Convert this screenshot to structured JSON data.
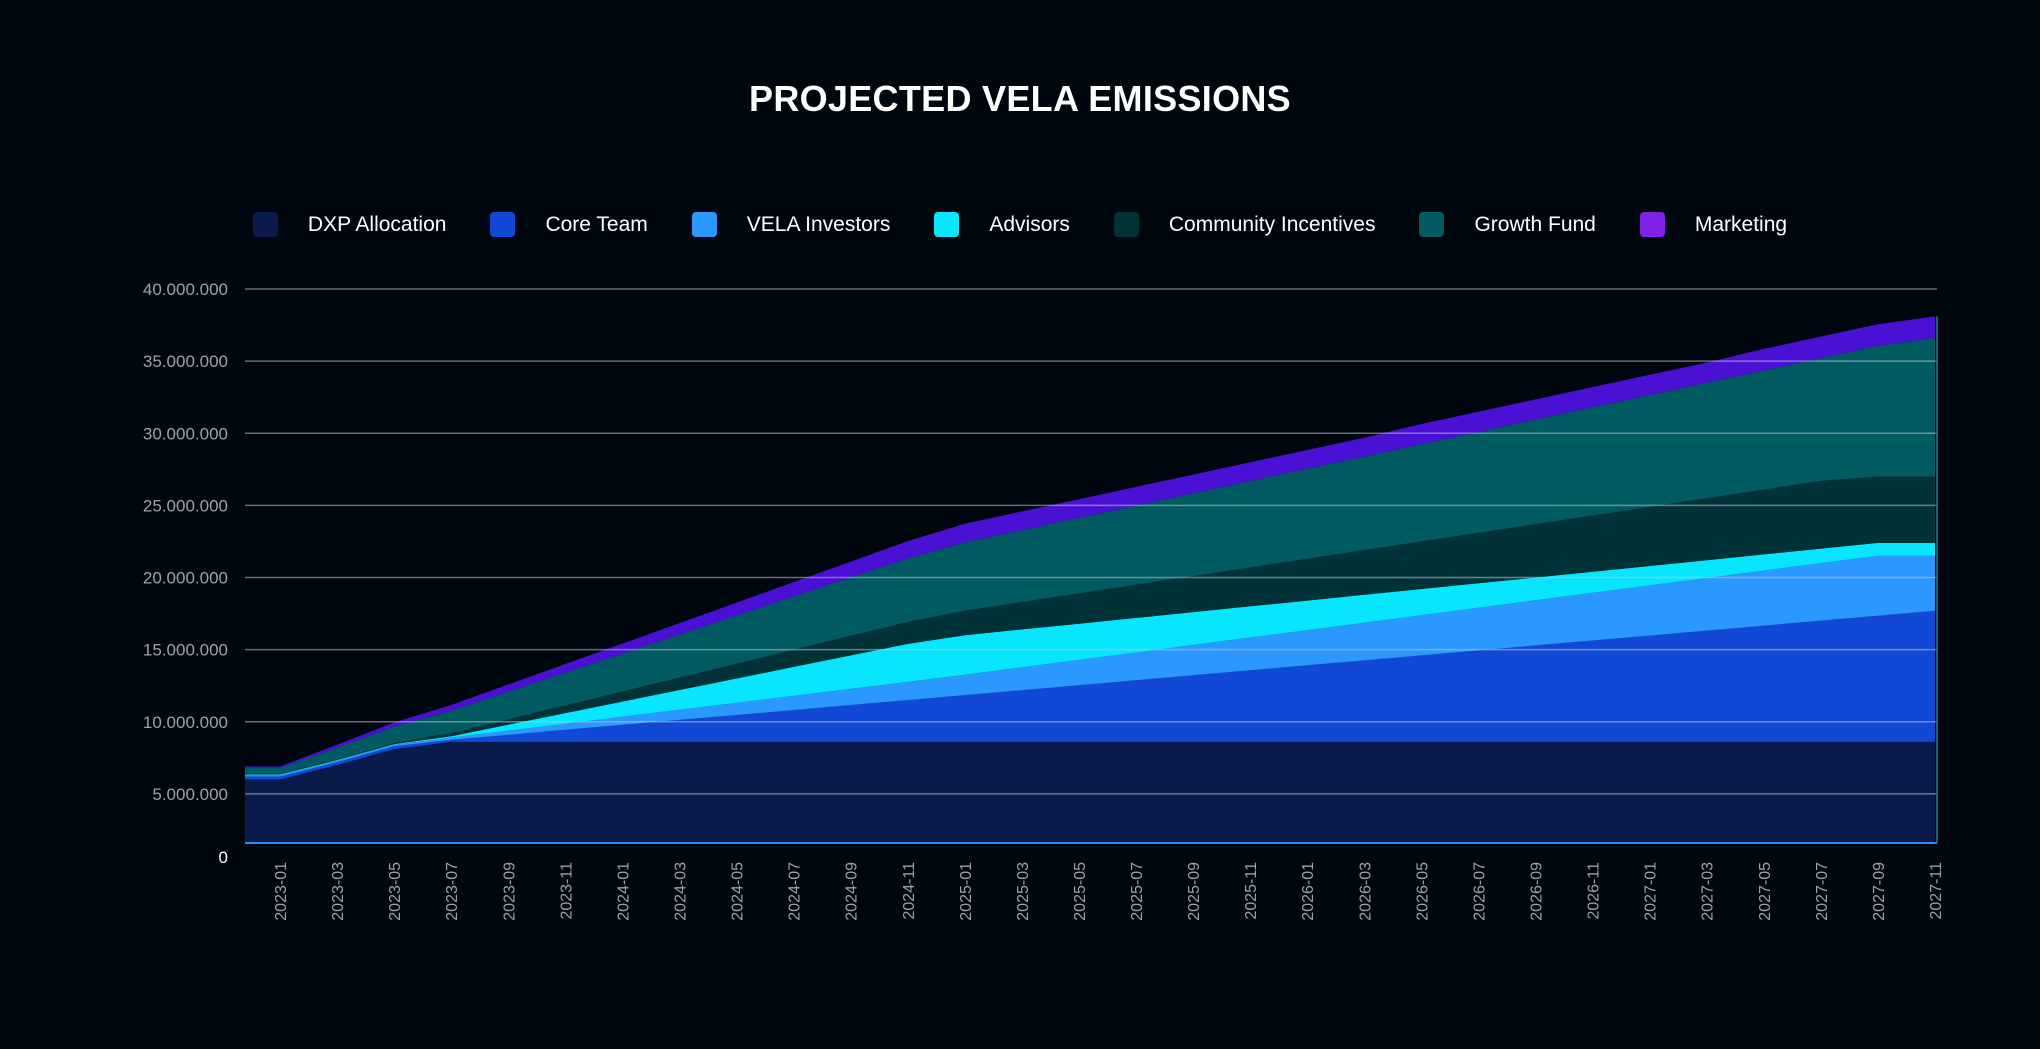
{
  "chart_data": {
    "type": "area",
    "stacked": true,
    "title": "PROJECTED VELA EMISSIONS",
    "xlabel": "",
    "ylabel": "",
    "ylim": [
      0,
      40000000
    ],
    "yticks": [
      0,
      5000000,
      10000000,
      15000000,
      20000000,
      25000000,
      30000000,
      35000000,
      40000000
    ],
    "ytick_labels": [
      "0",
      "5.000.000",
      "10.000.000",
      "15.000.000",
      "20.000.000",
      "25.000.000",
      "30.000.000",
      "35.000.000",
      "40.000.000"
    ],
    "grid": true,
    "legend_position": "top",
    "value_unit": "millions of VELA (per-series stacked contribution)",
    "x": [
      "2023-01",
      "2023-03",
      "2023-05",
      "2023-07",
      "2023-09",
      "2023-11",
      "2024-01",
      "2024-03",
      "2024-05",
      "2024-07",
      "2024-09",
      "2024-11",
      "2025-01",
      "2025-03",
      "2025-05",
      "2025-07",
      "2025-09",
      "2025-11",
      "2026-01",
      "2026-03",
      "2026-05",
      "2026-07",
      "2026-09",
      "2026-11",
      "2027-01",
      "2027-03",
      "2027-05",
      "2027-07",
      "2027-09",
      "2027-11"
    ],
    "series": [
      {
        "name": "DXP Allocation",
        "color": "#0a1a4b",
        "values": [
          6.0,
          7.0,
          8.1,
          8.6,
          8.6,
          8.6,
          8.6,
          8.6,
          8.6,
          8.6,
          8.6,
          8.6,
          8.6,
          8.6,
          8.6,
          8.6,
          8.6,
          8.6,
          8.6,
          8.6,
          8.6,
          8.6,
          8.6,
          8.6,
          8.6,
          8.6,
          8.6,
          8.6,
          8.6,
          8.6
        ]
      },
      {
        "name": "Core Team",
        "color": "#1148d6",
        "values": [
          0.2,
          0.2,
          0.2,
          0.15,
          0.49,
          0.84,
          1.18,
          1.53,
          1.87,
          2.21,
          2.56,
          2.9,
          3.25,
          3.59,
          3.93,
          4.28,
          4.62,
          4.97,
          5.31,
          5.65,
          6.0,
          6.34,
          6.69,
          7.03,
          7.37,
          7.72,
          8.06,
          8.41,
          8.75,
          9.09
        ]
      },
      {
        "name": "VELA Investors",
        "color": "#2b98ff",
        "values": [
          0.1,
          0.1,
          0.1,
          0.15,
          0.29,
          0.42,
          0.57,
          0.7,
          0.84,
          0.98,
          1.12,
          1.26,
          1.41,
          1.58,
          1.76,
          1.92,
          2.1,
          2.27,
          2.44,
          2.62,
          2.78,
          2.96,
          3.13,
          3.3,
          3.48,
          3.64,
          3.82,
          3.99,
          4.15,
          3.81
        ]
      },
      {
        "name": "Advisors",
        "color": "#08e6ff",
        "values": [
          0.05,
          0.05,
          0.05,
          0.1,
          0.42,
          0.74,
          1.05,
          1.37,
          1.69,
          2.01,
          2.32,
          2.64,
          2.74,
          2.63,
          2.51,
          2.4,
          2.28,
          2.16,
          2.05,
          1.93,
          1.82,
          1.7,
          1.58,
          1.47,
          1.35,
          1.24,
          1.12,
          1.0,
          0.9,
          0.9
        ]
      },
      {
        "name": "Community Incentives",
        "color": "#003238",
        "values": [
          0.05,
          0.05,
          0.1,
          0.2,
          0.36,
          0.53,
          0.69,
          0.86,
          1.02,
          1.19,
          1.35,
          1.52,
          1.7,
          1.9,
          2.1,
          2.3,
          2.5,
          2.7,
          2.9,
          3.1,
          3.3,
          3.5,
          3.7,
          3.9,
          4.1,
          4.3,
          4.5,
          4.7,
          4.6,
          4.6
        ]
      },
      {
        "name": "Growth Fund",
        "color": "#005a62",
        "values": [
          0.4,
          0.8,
          1.1,
          1.56,
          1.92,
          2.27,
          2.63,
          2.98,
          3.34,
          3.69,
          4.05,
          4.4,
          4.73,
          4.98,
          5.23,
          5.48,
          5.73,
          5.99,
          6.24,
          6.49,
          6.74,
          6.99,
          7.25,
          7.5,
          7.75,
          8.0,
          8.25,
          8.51,
          9.06,
          9.6
        ]
      },
      {
        "name": "Marketing",
        "color": "#4a10d4",
        "legend_color": "#8122e6",
        "values": [
          0.1,
          0.2,
          0.3,
          0.4,
          0.5,
          0.6,
          0.7,
          0.8,
          0.9,
          1.0,
          1.1,
          1.2,
          1.3,
          1.3,
          1.3,
          1.3,
          1.3,
          1.3,
          1.3,
          1.3,
          1.4,
          1.4,
          1.4,
          1.4,
          1.4,
          1.4,
          1.5,
          1.5,
          1.5,
          1.5
        ]
      }
    ]
  }
}
